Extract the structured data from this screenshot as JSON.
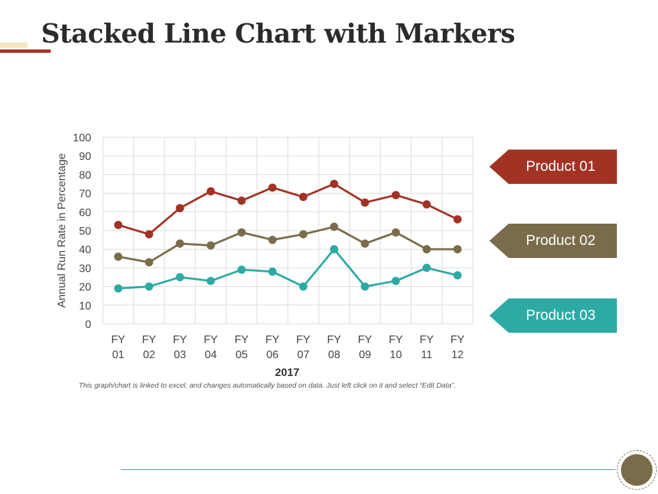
{
  "page": {
    "title": "Stacked Line Chart with Markers",
    "note": "This graph/chart is linked to excel, and changes automatically based on data. Just left click on it and select “Edit Data”."
  },
  "legend": [
    {
      "label": "Product 01",
      "color": "#a23324"
    },
    {
      "label": "Product 02",
      "color": "#7a6c4a"
    },
    {
      "label": "Product 03",
      "color": "#2daaa5"
    }
  ],
  "chart_data": {
    "type": "line",
    "title": "",
    "xlabel": "2017",
    "ylabel": "Annual Run Rate in Percentage",
    "categories": [
      [
        "FY",
        "01"
      ],
      [
        "FY",
        "02"
      ],
      [
        "FY",
        "03"
      ],
      [
        "FY",
        "04"
      ],
      [
        "FY",
        "05"
      ],
      [
        "FY",
        "06"
      ],
      [
        "FY",
        "07"
      ],
      [
        "FY",
        "08"
      ],
      [
        "FY",
        "09"
      ],
      [
        "FY",
        "10"
      ],
      [
        "FY",
        "11"
      ],
      [
        "FY",
        "12"
      ]
    ],
    "ylim": [
      0,
      100
    ],
    "yticks": [
      0,
      10,
      20,
      30,
      40,
      50,
      60,
      70,
      80,
      90,
      100
    ],
    "grid": true,
    "markers": true,
    "legend_position": "right",
    "series": [
      {
        "name": "Product 01",
        "color": "#a23324",
        "values": [
          53,
          48,
          62,
          71,
          66,
          73,
          68,
          75,
          65,
          69,
          64,
          56
        ]
      },
      {
        "name": "Product 02",
        "color": "#7a6c4a",
        "values": [
          36,
          33,
          43,
          42,
          49,
          45,
          48,
          52,
          43,
          49,
          40,
          40
        ]
      },
      {
        "name": "Product 03",
        "color": "#2daaa5",
        "values": [
          19,
          20,
          25,
          23,
          29,
          28,
          20,
          40,
          20,
          23,
          30,
          26
        ]
      }
    ]
  }
}
